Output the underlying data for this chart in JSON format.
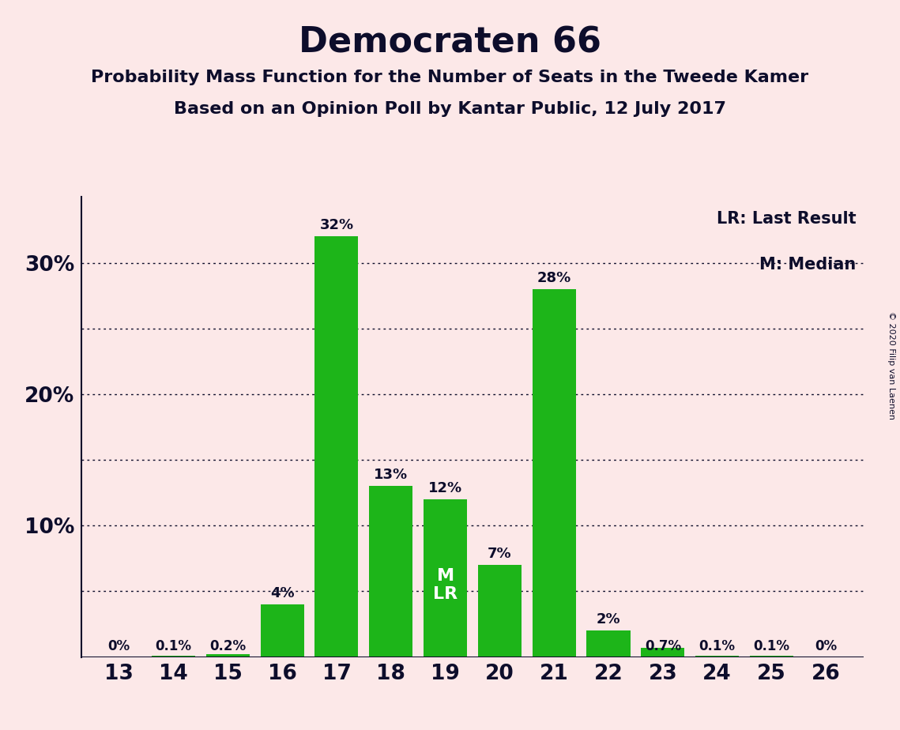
{
  "title": "Democraten 66",
  "subtitle1": "Probability Mass Function for the Number of Seats in the Tweede Kamer",
  "subtitle2": "Based on an Opinion Poll by Kantar Public, 12 July 2017",
  "copyright": "© 2020 Filip van Laenen",
  "legend_lr": "LR: Last Result",
  "legend_m": "M: Median",
  "seats": [
    13,
    14,
    15,
    16,
    17,
    18,
    19,
    20,
    21,
    22,
    23,
    24,
    25,
    26
  ],
  "values": [
    0.0,
    0.1,
    0.2,
    4.0,
    32.0,
    13.0,
    12.0,
    7.0,
    28.0,
    2.0,
    0.7,
    0.1,
    0.1,
    0.0
  ],
  "labels": [
    "0%",
    "0.1%",
    "0.2%",
    "4%",
    "32%",
    "13%",
    "12%",
    "7%",
    "28%",
    "2%",
    "0.7%",
    "0.1%",
    "0.1%",
    "0%"
  ],
  "bar_color": "#1db519",
  "background_color": "#fce8e8",
  "text_color": "#0d0d2b",
  "median_seat": 19,
  "lr_seat": 19,
  "yticks": [
    0,
    10,
    20,
    30
  ],
  "ylim": [
    0,
    35
  ],
  "grid_lines": [
    5,
    10,
    15,
    20,
    25,
    30
  ]
}
